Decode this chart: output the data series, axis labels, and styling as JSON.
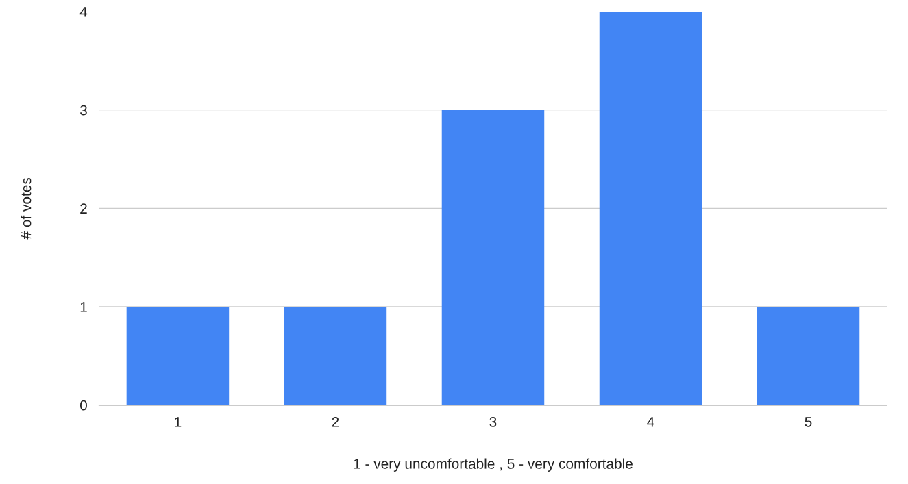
{
  "chart_data": {
    "type": "bar",
    "xlabel": "1 - very uncomfortable , 5 - very comfortable",
    "ylabel": "# of votes",
    "categories": [
      "1",
      "2",
      "3",
      "4",
      "5"
    ],
    "values": [
      1,
      1,
      3,
      4,
      1
    ],
    "color": "#4285f4",
    "ylim": [
      0,
      4
    ],
    "yticks": [
      0,
      1,
      2,
      3,
      4
    ],
    "grid": "y",
    "legend": false
  }
}
